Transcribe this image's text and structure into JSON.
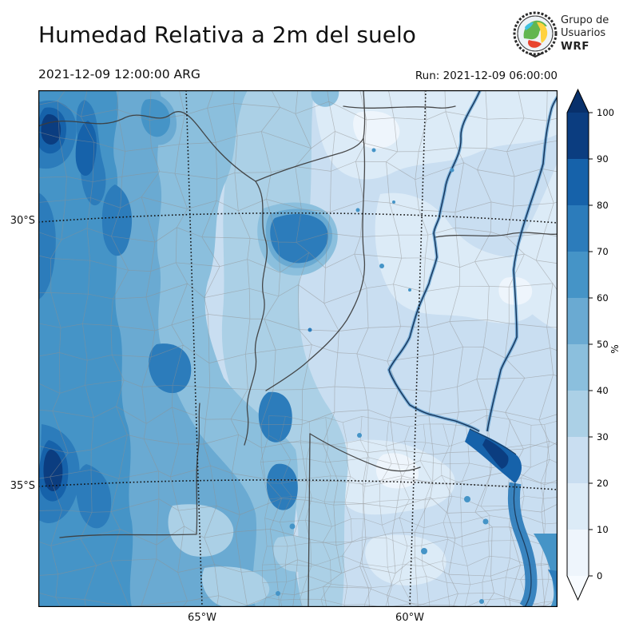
{
  "header": {
    "title": "Humedad Relativa a 2m del suelo",
    "valid_time": "2021-12-09 12:00:00 ARG",
    "run_time": "Run: 2021-12-09 06:00:00",
    "logo": {
      "line1": "Grupo de",
      "line2": "Usuarios",
      "line3": "WRF"
    }
  },
  "map": {
    "lat_labels": [
      "30°S",
      "35°S"
    ],
    "lon_labels": [
      "65°W",
      "60°W"
    ]
  },
  "colorbar": {
    "unit": "%",
    "ticks": [
      "0",
      "10",
      "20",
      "30",
      "40",
      "50",
      "60",
      "70",
      "80",
      "90",
      "100"
    ],
    "bins": [
      {
        "range": "0-10",
        "color": "#eef5fc"
      },
      {
        "range": "10-20",
        "color": "#dcebf7"
      },
      {
        "range": "20-30",
        "color": "#c9def1"
      },
      {
        "range": "30-40",
        "color": "#abd0e6"
      },
      {
        "range": "40-50",
        "color": "#8bbfdd"
      },
      {
        "range": "50-60",
        "color": "#6aaad2"
      },
      {
        "range": "60-70",
        "color": "#4594c7"
      },
      {
        "range": "70-80",
        "color": "#2c7cbb"
      },
      {
        "range": "80-90",
        "color": "#1662aa"
      },
      {
        "range": "90-100",
        "color": "#0b3d80"
      }
    ],
    "over_color": "#08306b",
    "under_color": "#f7fbff"
  },
  "map_data": {
    "type": "filled-contour-map",
    "variable": "Relative humidity at 2 m",
    "unit": "%",
    "valid_time": "2021-12-09 12:00:00 ARG",
    "run_time": "2021-12-09 06:00:00",
    "graticule": {
      "latitudes": [
        "30°S",
        "35°S"
      ],
      "longitudes": [
        "65°W",
        "60°W"
      ]
    },
    "regions": [
      {
        "area": "northwest Andes ridges",
        "value_range": "70-100"
      },
      {
        "area": "west band (Cuyo / sierras)",
        "value_range": "50-70"
      },
      {
        "area": "center (Cordoba) with dark blob near Mar Chiquita",
        "value_range": "40-80"
      },
      {
        "area": "northeast and east plains (Chaco / Santa Fe / Entre Rios)",
        "value_range": "10-30"
      },
      {
        "area": "Buenos Aires province",
        "value_range": "20-40"
      },
      {
        "area": "Rio de la Plata estuary and Atlantic coast",
        "value_range": "60-90"
      }
    ]
  }
}
